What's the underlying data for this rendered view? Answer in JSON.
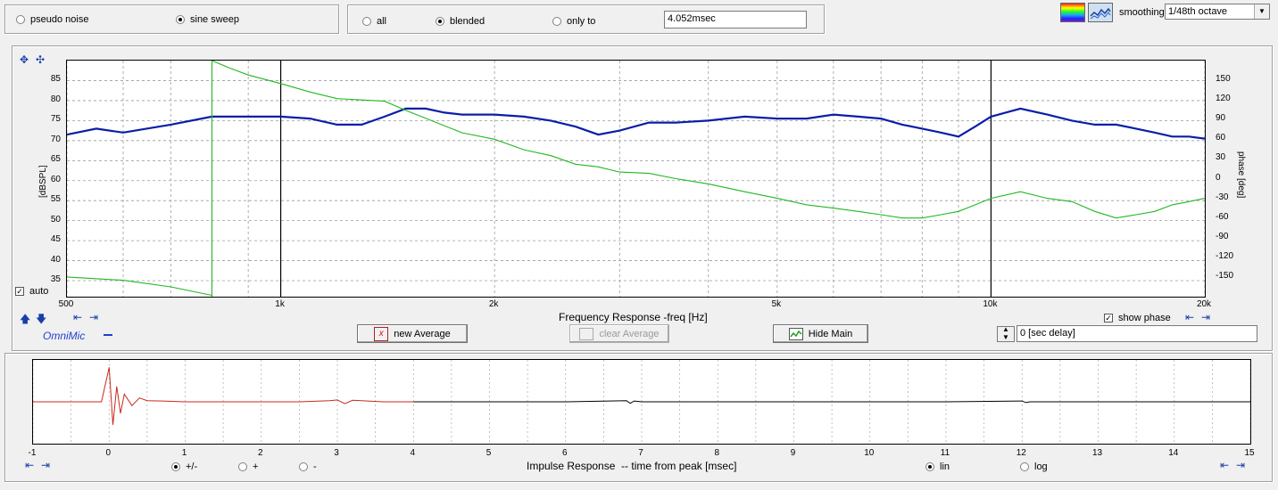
{
  "signal": {
    "options": [
      "pseudo noise",
      "sine sweep"
    ],
    "selected": "sine sweep"
  },
  "window": {
    "options": [
      "all",
      "blended",
      "only to"
    ],
    "selected": "blended",
    "time_value": "4.052msec"
  },
  "toolbar": {
    "smoothing_label": "smoothing",
    "smoothing_value": "1/48th octave",
    "icons": [
      "spectrogram-icon",
      "waterfall-icon"
    ]
  },
  "freq_plot": {
    "title": "Frequency Response -freq [Hz]",
    "ylabel": "[dBSPL]",
    "y2label": "phase [deg]",
    "yticks": [
      "85",
      "80",
      "75",
      "70",
      "65",
      "60",
      "55",
      "50",
      "45",
      "40",
      "35"
    ],
    "y2ticks": [
      "150",
      "120",
      "90",
      "60",
      "30",
      "0",
      "-30",
      "-60",
      "-90",
      "-120",
      "-150"
    ],
    "xticks": [
      "500",
      "1k",
      "2k",
      "5k",
      "10k",
      "20k"
    ],
    "auto_label": "auto",
    "auto_checked": true,
    "show_phase_label": "show phase",
    "show_phase_checked": true,
    "legend_label": "OmniMic"
  },
  "buttons": {
    "new_average": "new Average",
    "clear_average": "clear Average",
    "hide_main": "Hide Main"
  },
  "delay": {
    "value": "0 [sec delay]"
  },
  "impulse_plot": {
    "title": "Impulse Response  -- time from peak [msec]",
    "xticks": [
      "-1",
      "0",
      "1",
      "2",
      "3",
      "4",
      "5",
      "6",
      "7",
      "8",
      "9",
      "10",
      "11",
      "12",
      "13",
      "14",
      "15"
    ],
    "polarity": {
      "options": [
        "+/-",
        "+",
        "-"
      ],
      "selected": "+/-"
    },
    "scale": {
      "options": [
        "lin",
        "log"
      ],
      "selected": "lin"
    }
  },
  "chart_data": [
    {
      "type": "line",
      "title": "Frequency Response -freq [Hz]",
      "xlabel": "Frequency Response -freq [Hz]",
      "ylabel": "[dBSPL]",
      "y2label": "phase [deg]",
      "xscale": "log",
      "xlim": [
        500,
        20000
      ],
      "ylim": [
        31,
        90
      ],
      "y2lim": [
        -180,
        180
      ],
      "grid": true,
      "series": [
        {
          "color": "#0a1ea8",
          "axis": "left",
          "x": [
            500,
            550,
            600,
            700,
            800,
            900,
            1000,
            1100,
            1200,
            1300,
            1400,
            1500,
            1600,
            1700,
            1800,
            1900,
            2000,
            2200,
            2400,
            2600,
            2800,
            3000,
            3300,
            3600,
            4000,
            4500,
            5000,
            5500,
            6000,
            6500,
            7000,
            7500,
            8000,
            8500,
            9000,
            9500,
            10000,
            11000,
            12000,
            13000,
            14000,
            15000,
            16000,
            17000,
            18000,
            19000,
            20000
          ],
          "y": [
            71.5,
            73,
            72,
            74,
            76,
            76,
            76,
            75.5,
            74,
            74,
            76,
            78,
            78,
            77,
            76.5,
            76.5,
            76.5,
            76,
            75,
            73.5,
            71.5,
            72.5,
            74.5,
            74.5,
            75,
            76,
            75.5,
            75.5,
            76.5,
            76,
            75.5,
            74,
            73,
            72,
            71,
            73.5,
            76,
            78,
            76.5,
            75,
            74,
            74,
            73,
            72,
            71,
            71,
            70.5
          ]
        },
        {
          "color": "#20b820",
          "axis": "right",
          "x": [
            800,
            850,
            900,
            1000,
            1100,
            1200,
            1300,
            1400,
            1500,
            1600,
            1800,
            2000,
            2200,
            2400,
            2600,
            2800,
            3000,
            3300,
            3600,
            4000,
            4500,
            5000,
            5500,
            6000,
            6500,
            7000,
            7500,
            8000,
            8500,
            9000,
            9500,
            10000,
            11000,
            12000,
            13000,
            14000,
            15000,
            16000,
            17000,
            18000,
            19000,
            20000
          ],
          "y": [
            180,
            168,
            158,
            145,
            132,
            122,
            120,
            118,
            104,
            92,
            70,
            60,
            44,
            35,
            22,
            18,
            10,
            8,
            0,
            -8,
            -20,
            -30,
            -40,
            -45,
            -50,
            -55,
            -60,
            -60,
            -55,
            -50,
            -40,
            -30,
            -20,
            -30,
            -35,
            -50,
            -60,
            -55,
            -50,
            -40,
            -35,
            -30
          ]
        },
        {
          "color": "#20b820",
          "axis": "right",
          "x": [
            500,
            600,
            700,
            800
          ],
          "y": [
            -150,
            -155,
            -165,
            -178
          ]
        }
      ]
    },
    {
      "type": "line",
      "title": "Impulse Response  -- time from peak [msec]",
      "xlabel": "Impulse Response  -- time from peak [msec]",
      "xlim": [
        -1,
        15
      ],
      "grid": true,
      "series": [
        {
          "color": "#c8281e",
          "x": [
            -1,
            -0.1,
            0,
            0.05,
            0.1,
            0.15,
            0.2,
            0.3,
            0.4,
            0.5,
            0.7,
            1,
            1.5,
            2,
            2.5,
            2.9,
            3.0,
            3.1,
            3.2,
            3.4,
            3.6,
            4
          ],
          "y": [
            0,
            0,
            0.9,
            -0.6,
            0.4,
            -0.3,
            0.2,
            -0.1,
            0.1,
            0.03,
            0.02,
            0,
            0,
            0,
            0,
            0.03,
            0.05,
            -0.05,
            0.04,
            0.02,
            0,
            0
          ]
        },
        {
          "color": "#000000",
          "x": [
            4,
            5,
            6,
            6.8,
            6.85,
            6.9,
            7,
            8,
            9,
            10,
            11,
            12,
            12.05,
            12.1,
            13,
            14,
            15
          ],
          "y": [
            0,
            0,
            0,
            0.03,
            -0.04,
            0.02,
            0,
            0,
            0,
            0,
            0,
            0.02,
            -0.02,
            0,
            0,
            0,
            0
          ]
        }
      ]
    }
  ]
}
